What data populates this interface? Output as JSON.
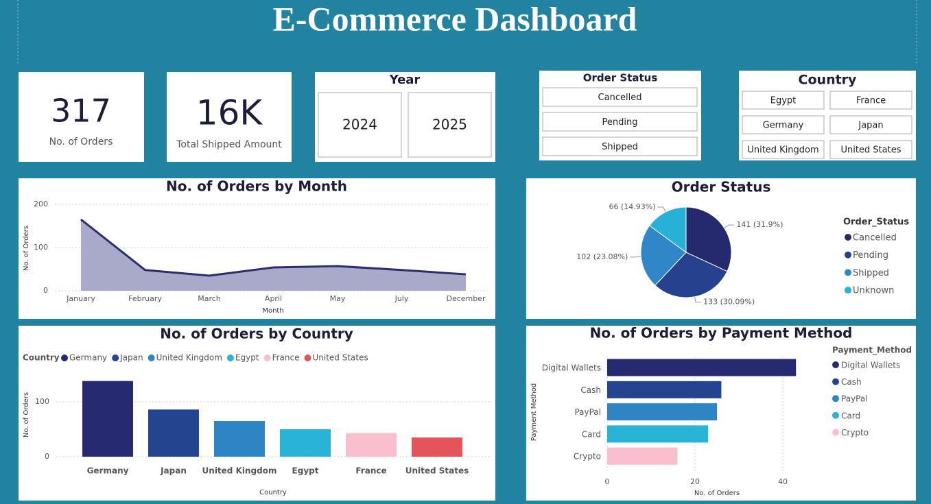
{
  "title": "E-Commerce Dashboard",
  "kpis": [
    {
      "value": "317",
      "label": "No. of Orders"
    },
    {
      "value": "16K",
      "label": "Total Shipped Amount"
    }
  ],
  "slicers": [
    {
      "title": "Year",
      "items": [
        "2024",
        "2025"
      ]
    },
    {
      "title": "Order Status",
      "items": [
        "Cancelled",
        "Pending",
        "Shipped"
      ]
    },
    {
      "title": "Country",
      "items": [
        "Egypt",
        "France",
        "Germany",
        "Japan",
        "United Kingdom",
        "United States"
      ]
    }
  ],
  "chart_data": [
    {
      "type": "area",
      "title": "No. of Orders by Month",
      "x_label": "Month",
      "y_label": "No. of Orders",
      "categories": [
        "January",
        "February",
        "March",
        "April",
        "May",
        "July",
        "December"
      ],
      "values": [
        165,
        48,
        35,
        54,
        57,
        48,
        38
      ],
      "color": "#2b2d6e",
      "fill": "#a9a9c9",
      "ylim": [
        0,
        200
      ],
      "yticks": [
        0,
        100,
        200
      ],
      "grid": true
    },
    {
      "type": "pie",
      "title": "Order Status",
      "legend_title": "Order_Status",
      "categories": [
        "Cancelled",
        "Pending",
        "Shipped",
        "Unknown"
      ],
      "values": [
        141,
        133,
        102,
        66
      ],
      "value_labels": [
        "141 (31.9%)",
        "133 (30.09%)",
        "102 (23.08%)",
        "66 (14.93%)"
      ],
      "colors": [
        "#252a6e",
        "#26418e",
        "#2f87c8",
        "#27b1d6"
      ]
    },
    {
      "type": "bar",
      "title": "No. of Orders by Country",
      "legend_title": "Country",
      "x_label": "Country",
      "y_label": "No. of Orders",
      "categories": [
        "Germany",
        "Japan",
        "United Kingdom",
        "Egypt",
        "France",
        "United States"
      ],
      "values": [
        138,
        86,
        65,
        50,
        43,
        35
      ],
      "colors": [
        "#262a70",
        "#23448f",
        "#2f85c4",
        "#29b3d5",
        "#f9bfcc",
        "#e5535b"
      ],
      "ylim": [
        0,
        150
      ],
      "yticks": [
        0,
        100
      ],
      "grid": true
    },
    {
      "type": "hbar",
      "title": "No. of Orders by Payment Method",
      "legend_title": "Payment_Method",
      "x_label": "No. of Orders",
      "y_label": "Payment Method",
      "categories": [
        "Digital Wallets",
        "Cash",
        "PayPal",
        "Card",
        "Crypto"
      ],
      "values": [
        43,
        26,
        25,
        23,
        16
      ],
      "colors": [
        "#262a70",
        "#23448f",
        "#2f85c4",
        "#29b3d5",
        "#f9bfcc"
      ],
      "xlim": [
        0,
        45
      ],
      "xticks": [
        0,
        20,
        40
      ],
      "grid": true
    }
  ]
}
